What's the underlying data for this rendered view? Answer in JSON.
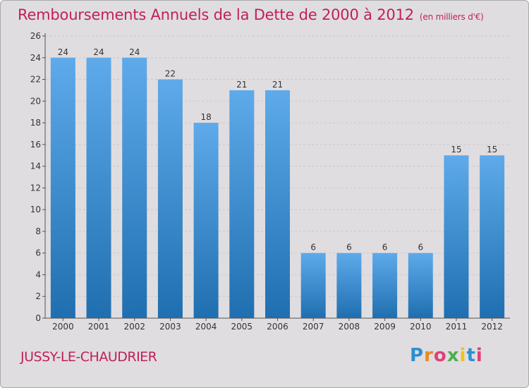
{
  "header": {
    "title": "Remboursements Annuels de la Dette de 2000 à 2012",
    "unit": "(en milliers d'€)"
  },
  "footer": {
    "place": "JUSSY-LE-CHAUDRIER",
    "logo": {
      "letters": [
        "P",
        "r",
        "o",
        "x",
        "i",
        "t",
        "i"
      ],
      "colors": [
        "#2e8fd0",
        "#e88b1c",
        "#e0407a",
        "#4caf50",
        "#f2c21b",
        "#2e8fd0",
        "#e0407a"
      ]
    }
  },
  "colors": {
    "bar_dark": "#1f6fb0",
    "bar_light": "#5eaaea",
    "title": "#c0205a",
    "grid": "#c8c8c8"
  },
  "chart_data": {
    "type": "bar",
    "categories": [
      "2000",
      "2001",
      "2002",
      "2003",
      "2004",
      "2005",
      "2006",
      "2007",
      "2008",
      "2009",
      "2010",
      "2011",
      "2012"
    ],
    "values": [
      24,
      24,
      24,
      22,
      18,
      21,
      21,
      6,
      6,
      6,
      6,
      15,
      15
    ],
    "title": "Remboursements Annuels de la Dette de 2000 à 2012",
    "ylim": [
      0,
      26
    ],
    "yticks": [
      0,
      2,
      4,
      6,
      8,
      10,
      12,
      14,
      16,
      18,
      20,
      22,
      24,
      26
    ],
    "grid": true,
    "data_labels": true
  }
}
